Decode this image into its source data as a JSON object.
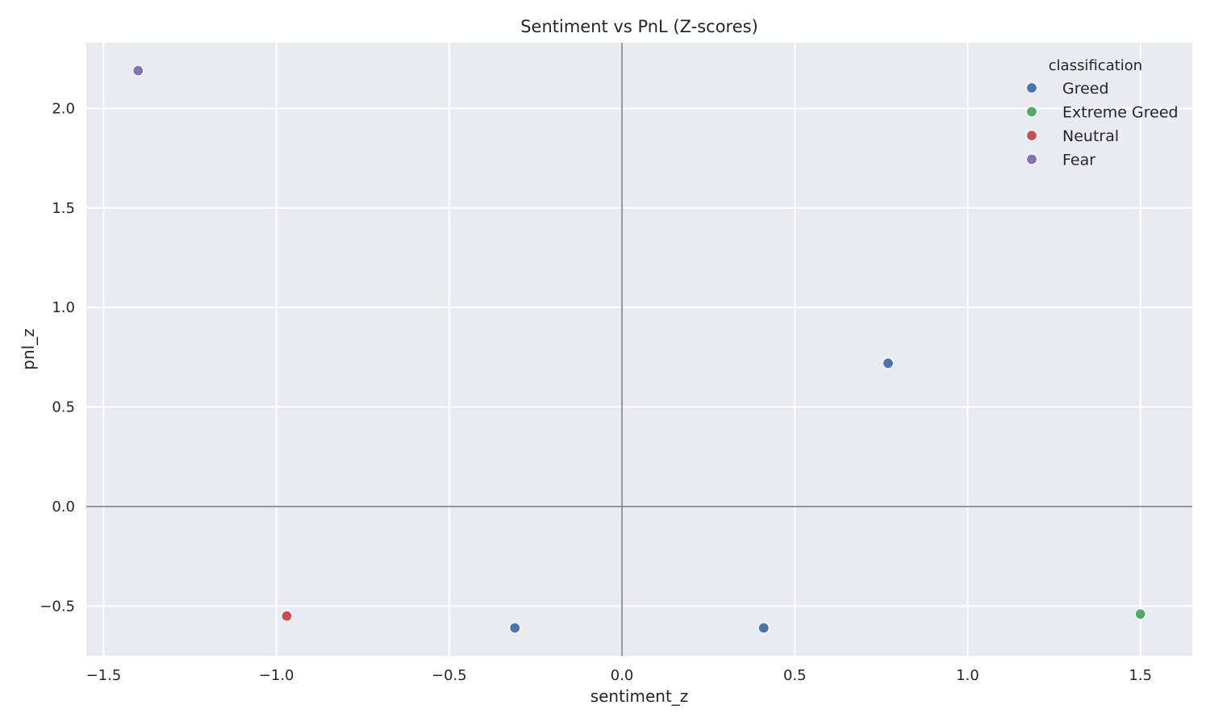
{
  "chart_data": {
    "type": "scatter",
    "title": "Sentiment vs PnL (Z-scores)",
    "xlabel": "sentiment_z",
    "ylabel": "pnl_z",
    "xlim": [
      -1.55,
      1.65
    ],
    "ylim": [
      -0.75,
      2.33
    ],
    "xticks": [
      -1.5,
      -1.0,
      -0.5,
      0.0,
      0.5,
      1.0,
      1.5
    ],
    "xtick_labels": [
      "−1.5",
      "−1.0",
      "−0.5",
      "0.0",
      "0.5",
      "1.0",
      "1.5"
    ],
    "yticks": [
      -0.5,
      0.0,
      0.5,
      1.0,
      1.5,
      2.0
    ],
    "ytick_labels": [
      "−0.5",
      "0.0",
      "0.5",
      "1.0",
      "1.5",
      "2.0"
    ],
    "grid": true,
    "reference_lines": {
      "x": 0,
      "y": 0
    },
    "legend": {
      "title": "classification",
      "placement": "top-right"
    },
    "series": [
      {
        "name": "Greed",
        "color": "#4c72b0",
        "points": [
          {
            "x": -0.31,
            "y": -0.61
          },
          {
            "x": 0.41,
            "y": -0.61
          },
          {
            "x": 0.77,
            "y": 0.72
          }
        ]
      },
      {
        "name": "Extreme Greed",
        "color": "#55a868",
        "points": [
          {
            "x": 1.5,
            "y": -0.54
          }
        ]
      },
      {
        "name": "Neutral",
        "color": "#c44e52",
        "points": [
          {
            "x": -0.97,
            "y": -0.55
          }
        ]
      },
      {
        "name": "Fear",
        "color": "#8172b3",
        "points": [
          {
            "x": -1.4,
            "y": 2.19
          }
        ]
      }
    ]
  }
}
